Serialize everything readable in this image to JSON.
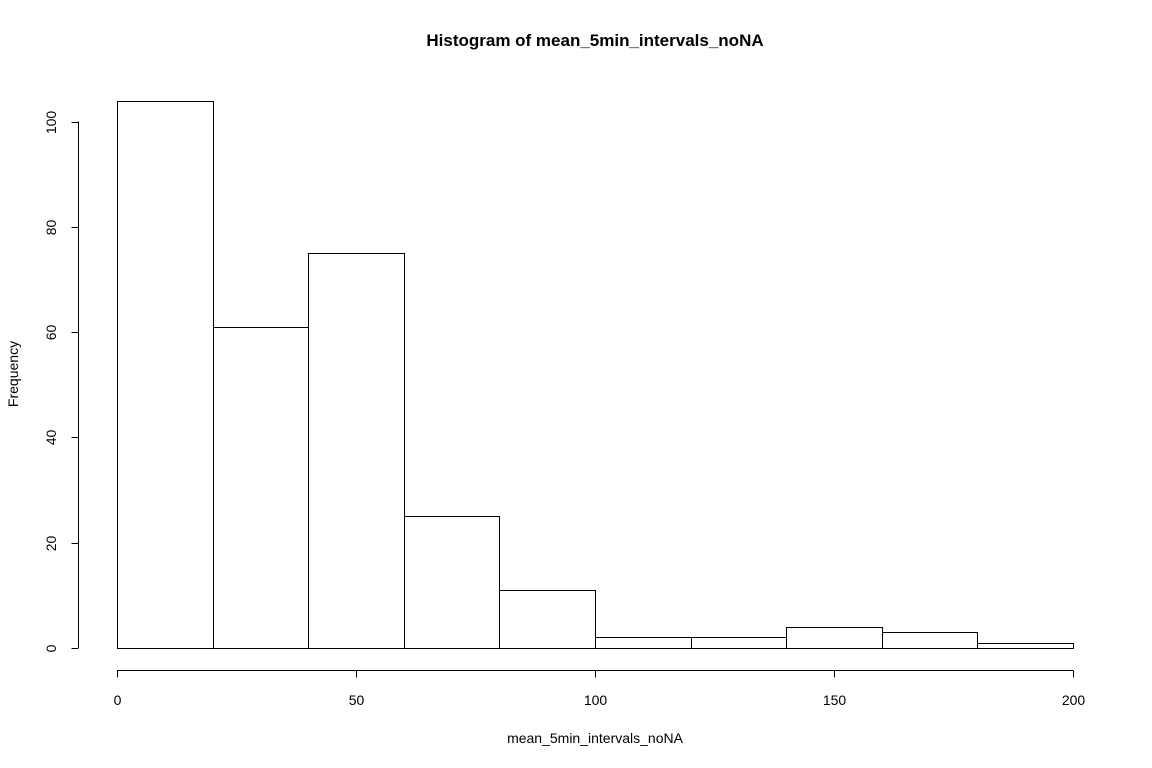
{
  "chart_data": {
    "type": "bar",
    "title": "Histogram of mean_5min_intervals_noNA",
    "xlabel": "mean_5min_intervals_noNA",
    "ylabel": "Frequency",
    "bins": [
      {
        "start": 0,
        "end": 20,
        "count": 104
      },
      {
        "start": 20,
        "end": 40,
        "count": 61
      },
      {
        "start": 40,
        "end": 60,
        "count": 75
      },
      {
        "start": 60,
        "end": 80,
        "count": 25
      },
      {
        "start": 80,
        "end": 100,
        "count": 11
      },
      {
        "start": 100,
        "end": 120,
        "count": 2
      },
      {
        "start": 120,
        "end": 140,
        "count": 2
      },
      {
        "start": 140,
        "end": 160,
        "count": 4
      },
      {
        "start": 160,
        "end": 180,
        "count": 3
      },
      {
        "start": 180,
        "end": 200,
        "count": 1
      }
    ],
    "xlim": [
      0,
      200
    ],
    "ylim": [
      0,
      104
    ],
    "xticks": [
      0,
      50,
      100,
      150,
      200
    ],
    "yticks": [
      0,
      20,
      40,
      60,
      80,
      100
    ],
    "grid": false,
    "bar_fill": "#ffffff",
    "bar_stroke": "#000000"
  }
}
